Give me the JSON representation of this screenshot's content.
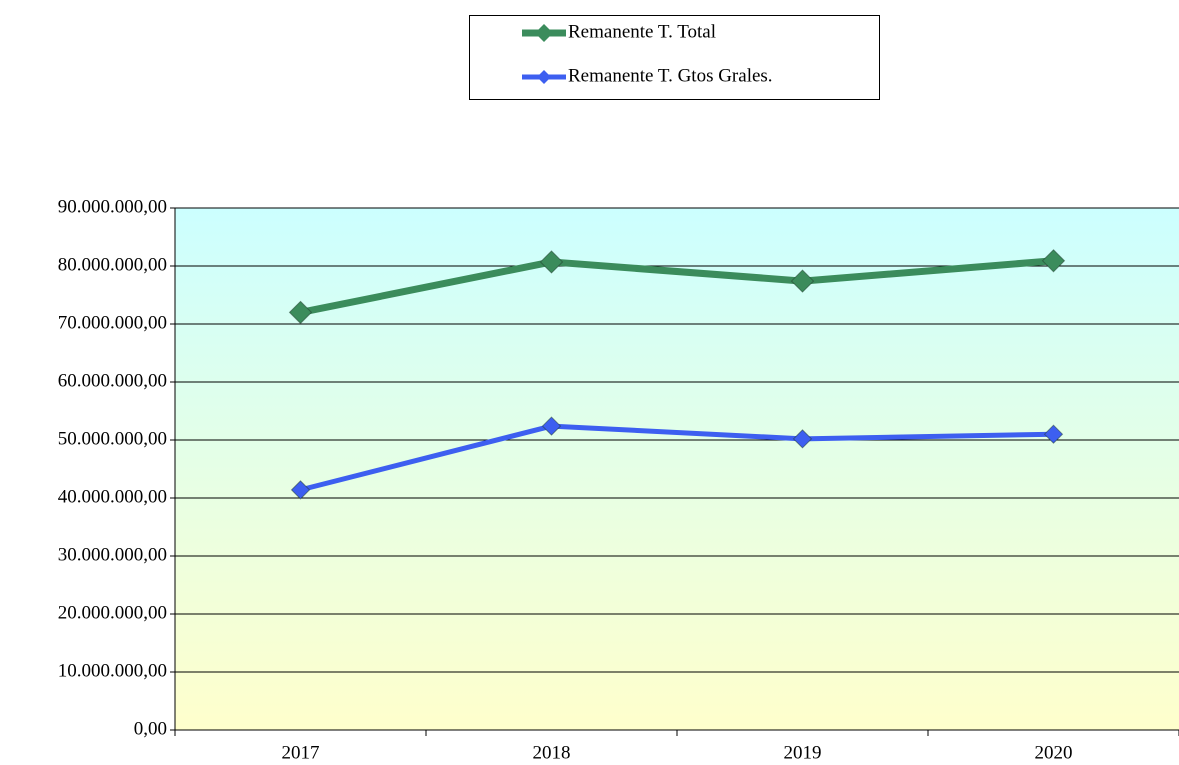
{
  "chart_data": {
    "type": "line",
    "categories": [
      "2017",
      "2018",
      "2019",
      "2020"
    ],
    "series": [
      {
        "name": "Remanente T. Total",
        "color": "#3b8c5c",
        "values": [
          72000000,
          80700000,
          77400000,
          80900000
        ]
      },
      {
        "name": "Remanente T. Gtos Grales.",
        "color": "#3d5ff0",
        "values": [
          41400000,
          52400000,
          50200000,
          51000000
        ]
      }
    ],
    "ylim": [
      0,
      90000000
    ],
    "yticks": [
      {
        "value": 0,
        "label": "0,00"
      },
      {
        "value": 10000000,
        "label": "10.000.000,00"
      },
      {
        "value": 20000000,
        "label": "20.000.000,00"
      },
      {
        "value": 30000000,
        "label": "30.000.000,00"
      },
      {
        "value": 40000000,
        "label": "40.000.000,00"
      },
      {
        "value": 50000000,
        "label": "50.000.000,00"
      },
      {
        "value": 60000000,
        "label": "60.000.000,00"
      },
      {
        "value": 70000000,
        "label": "70.000.000,00"
      },
      {
        "value": 80000000,
        "label": "80.000.000,00"
      },
      {
        "value": 90000000,
        "label": "90.000.000,00"
      }
    ],
    "grid": true,
    "legend": "top"
  }
}
